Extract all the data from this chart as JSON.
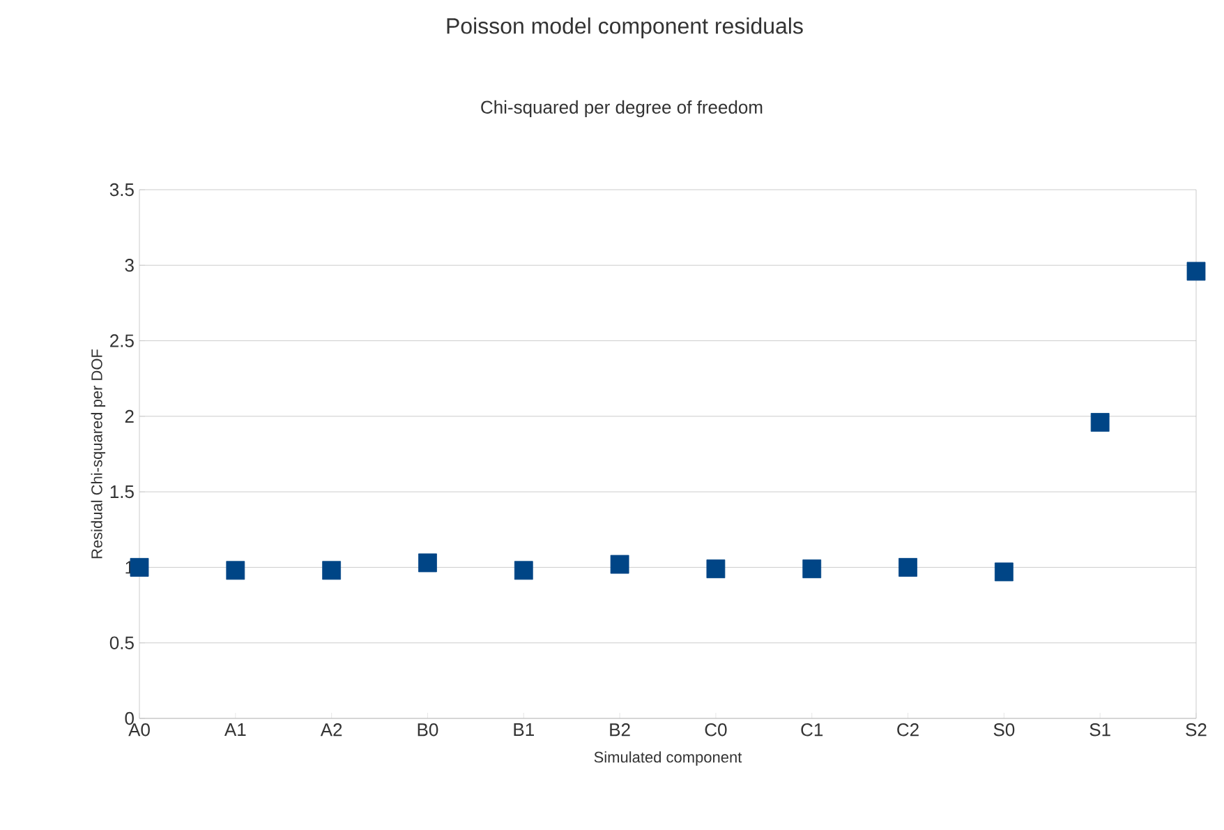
{
  "chart_data": {
    "type": "scatter",
    "title": "Poisson model component residuals",
    "subtitle": "Chi-squared per degree of freedom",
    "xlabel": "Simulated component",
    "ylabel": "Residual Chi-squared per DOF",
    "categories": [
      "A0",
      "A1",
      "A2",
      "B0",
      "B1",
      "B2",
      "C0",
      "C1",
      "C2",
      "S0",
      "S1",
      "S2"
    ],
    "series": [
      {
        "color": "#004586",
        "values": [
          1.0,
          0.98,
          0.98,
          1.03,
          0.98,
          1.02,
          0.99,
          0.99,
          1.0,
          0.97,
          1.96,
          2.96
        ]
      }
    ],
    "ylim": [
      0,
      3.5
    ],
    "yticks": [
      0,
      0.5,
      1,
      1.5,
      2,
      2.5,
      3,
      3.5
    ],
    "grid": "y",
    "marker": "square"
  }
}
